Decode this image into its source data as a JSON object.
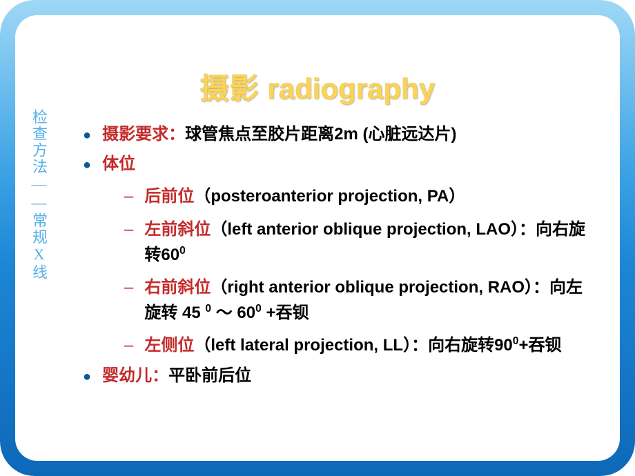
{
  "colors": {
    "frame_gradient_top": "#9fd8f6",
    "frame_gradient_bottom": "#0d68b8",
    "title_color": "#fbd455",
    "sidebar_text": "#58b1e8",
    "bullet_color": "#0b5a97",
    "accent_red": "#c42a2a",
    "body_text": "#000000",
    "background": "#ffffff"
  },
  "typography": {
    "title_fontsize": 42,
    "body_fontsize": 24,
    "sidebar_fontsize": 22,
    "title_weight": "bold",
    "body_weight": "bold"
  },
  "title": {
    "cn": "摄影",
    "en": "radiography"
  },
  "sidebar": "检查方法——常规X线",
  "items": [
    {
      "label": "摄影要求：",
      "text": "球管焦点至胶片距离2m (心脏远达片)"
    },
    {
      "label": "体位",
      "text": ""
    }
  ],
  "sub": [
    {
      "label": "后前位",
      "rest": "（posteroanterior projection, PA）"
    },
    {
      "label": "左前斜位",
      "rest": "（left anterior oblique projection, LAO）：向右旋转60",
      "sup": "0"
    },
    {
      "label": "右前斜位",
      "rest": "（right anterior oblique projection, RAO）：向左旋转 45 ",
      "sup1": "0",
      "mid": " ～ 60",
      "sup2": "0",
      "tail": " +吞钡"
    },
    {
      "label": "左侧位",
      "rest": "（left lateral projection, LL）：向右旋转90",
      "sup": "0",
      "tail": "+吞钡"
    }
  ],
  "last": {
    "label": "婴幼儿：",
    "text": "平卧前后位"
  }
}
